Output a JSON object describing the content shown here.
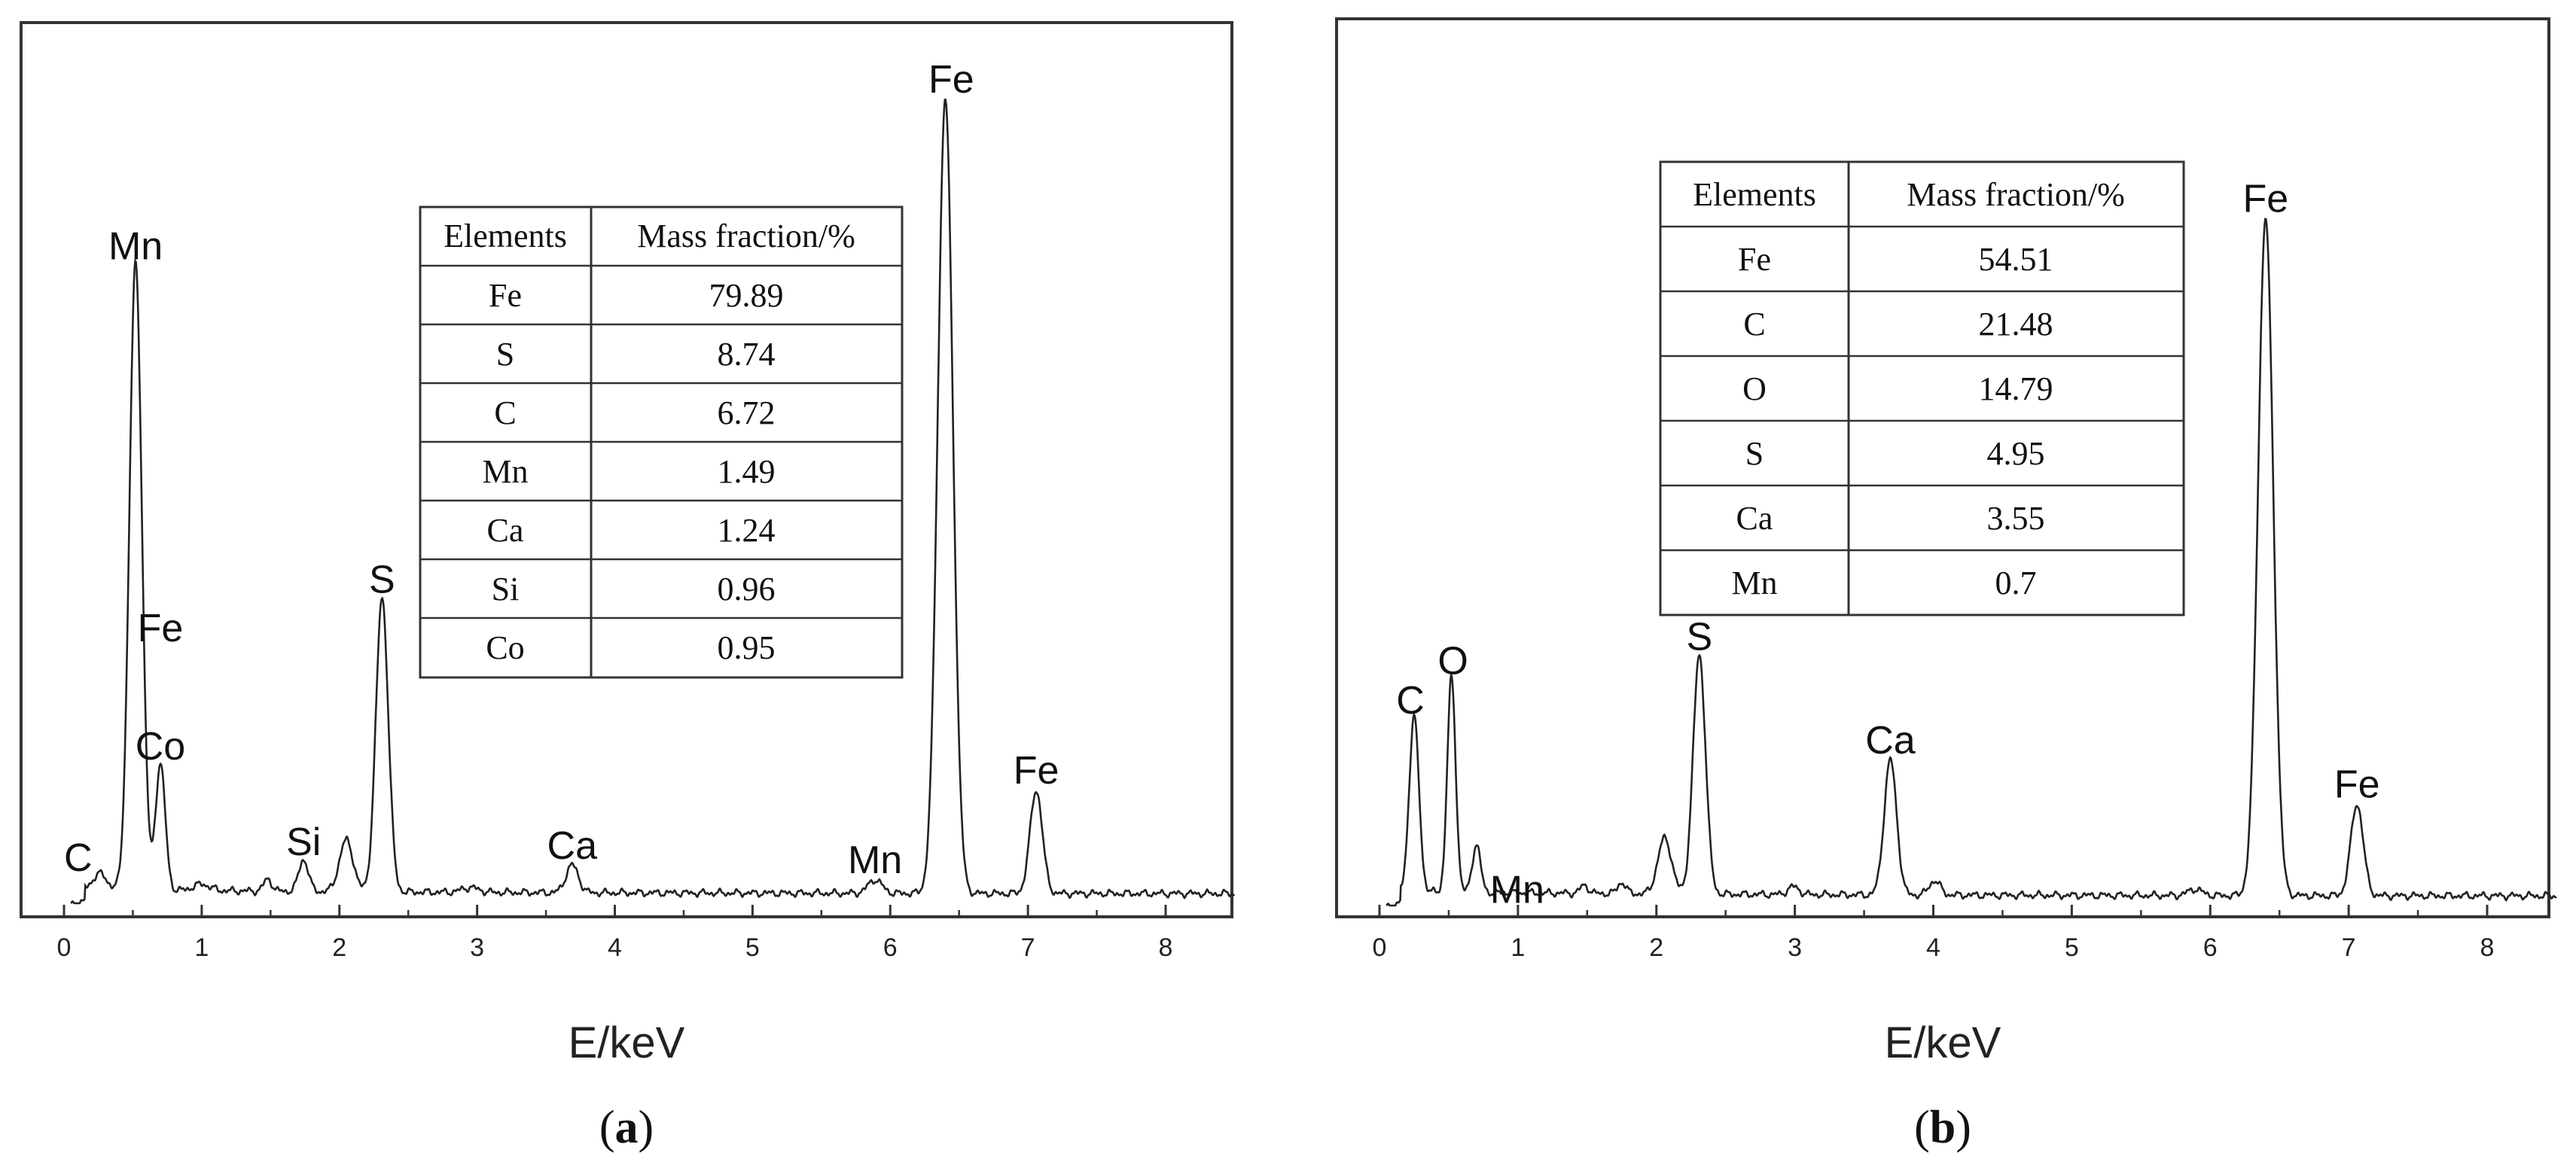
{
  "chart_data": [
    {
      "type": "line",
      "panel_label": "a",
      "xlabel": "E/keV",
      "xlim": [
        0,
        8.5
      ],
      "x_ticks": [
        "0",
        "1",
        "2",
        "3",
        "4",
        "5",
        "6",
        "7",
        "8"
      ],
      "ylim": [
        0,
        100
      ],
      "y_ticks_shown": false,
      "peaks": [
        {
          "x": 0.52,
          "y": 79,
          "w": 0.045
        },
        {
          "x": 0.7,
          "y": 16,
          "w": 0.035
        },
        {
          "x": 2.31,
          "y": 37,
          "w": 0.045
        },
        {
          "x": 6.4,
          "y": 100,
          "w": 0.055
        },
        {
          "x": 7.06,
          "y": 13,
          "w": 0.045
        },
        {
          "x": 2.05,
          "y": 6.5,
          "w": 0.05
        },
        {
          "x": 1.74,
          "y": 4,
          "w": 0.035
        },
        {
          "x": 1.48,
          "y": 1.5,
          "w": 0.03
        },
        {
          "x": 0.26,
          "y": 2,
          "w": 0.05
        },
        {
          "x": 3.69,
          "y": 3.5,
          "w": 0.045
        },
        {
          "x": 5.89,
          "y": 1.7,
          "w": 0.05
        },
        {
          "x": 1.0,
          "y": 0.8,
          "w": 0.06
        },
        {
          "x": 2.95,
          "y": 0.6,
          "w": 0.06
        }
      ],
      "annotations": [
        {
          "text": "Mn",
          "x": 0.52,
          "y": 79
        },
        {
          "text": "Fe",
          "x": 0.7,
          "y": 24
        },
        {
          "text": "Co",
          "x": 0.7,
          "y": 16
        },
        {
          "text": "Si",
          "x": 1.74,
          "y": 4
        },
        {
          "text": "S",
          "x": 2.31,
          "y": 37
        },
        {
          "text": "C",
          "x": 0.26,
          "y": 2
        },
        {
          "text": "Ca",
          "x": 3.69,
          "y": 3.5
        },
        {
          "text": "Mn",
          "x": 5.89,
          "y": 1.7
        },
        {
          "text": "Fe",
          "x": 6.4,
          "y": 100
        },
        {
          "text": "Fe",
          "x": 7.06,
          "y": 13
        }
      ],
      "table": {
        "headers": [
          "Elements",
          "Mass fraction/%"
        ],
        "rows": [
          [
            "Fe",
            "79.89"
          ],
          [
            "S",
            "8.74"
          ],
          [
            "C",
            "6.72"
          ],
          [
            "Mn",
            "1.49"
          ],
          [
            "Ca",
            "1.24"
          ],
          [
            "Si",
            "0.96"
          ],
          [
            "Co",
            "0.95"
          ]
        ]
      }
    },
    {
      "type": "line",
      "panel_label": "b",
      "xlabel": "E/keV",
      "xlim": [
        0,
        8.5
      ],
      "x_ticks": [
        "0",
        "1",
        "2",
        "3",
        "4",
        "5",
        "6",
        "7",
        "8"
      ],
      "ylim": [
        0,
        100
      ],
      "y_ticks_shown": false,
      "peaks": [
        {
          "x": 0.25,
          "y": 22,
          "w": 0.035
        },
        {
          "x": 0.52,
          "y": 27,
          "w": 0.03
        },
        {
          "x": 0.7,
          "y": 6,
          "w": 0.03
        },
        {
          "x": 2.31,
          "y": 30,
          "w": 0.045
        },
        {
          "x": 2.06,
          "y": 7,
          "w": 0.05
        },
        {
          "x": 3.69,
          "y": 17,
          "w": 0.045
        },
        {
          "x": 6.4,
          "y": 85,
          "w": 0.055
        },
        {
          "x": 7.06,
          "y": 11.5,
          "w": 0.045
        },
        {
          "x": 1.75,
          "y": 1.4,
          "w": 0.03
        },
        {
          "x": 1.48,
          "y": 1.0,
          "w": 0.03
        },
        {
          "x": 2.99,
          "y": 1.0,
          "w": 0.04
        },
        {
          "x": 4.01,
          "y": 1.8,
          "w": 0.04
        },
        {
          "x": 5.89,
          "y": 0.8,
          "w": 0.05
        }
      ],
      "annotations": [
        {
          "text": "C",
          "x": 0.25,
          "y": 22
        },
        {
          "text": "O",
          "x": 0.52,
          "y": 27
        },
        {
          "text": "Mn",
          "x": 0.7,
          "y": 6
        },
        {
          "text": "S",
          "x": 2.31,
          "y": 30
        },
        {
          "text": "Ca",
          "x": 3.69,
          "y": 17
        },
        {
          "text": "Fe",
          "x": 6.4,
          "y": 85
        },
        {
          "text": "Fe",
          "x": 7.06,
          "y": 11.5
        }
      ],
      "table": {
        "headers": [
          "Elements",
          "Mass fraction/%"
        ],
        "rows": [
          [
            "Fe",
            "54.51"
          ],
          [
            "C",
            "21.48"
          ],
          [
            "O",
            "14.79"
          ],
          [
            "S",
            "4.95"
          ],
          [
            "Ca",
            "3.55"
          ],
          [
            "Mn",
            "0.7"
          ]
        ]
      }
    }
  ]
}
